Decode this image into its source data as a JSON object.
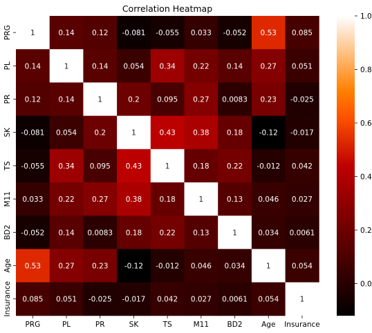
{
  "chart_data": {
    "type": "heatmap",
    "title": "Correlation Heatmap",
    "xlabel": "",
    "ylabel": "",
    "x_labels": [
      "PRG",
      "PL",
      "PR",
      "SK",
      "TS",
      "M11",
      "BD2",
      "Age",
      "Insurance"
    ],
    "y_labels": [
      "PRG",
      "PL",
      "PR",
      "SK",
      "TS",
      "M11",
      "BD2",
      "Age",
      "Insurance"
    ],
    "values": [
      [
        1,
        0.14,
        0.12,
        -0.081,
        -0.055,
        0.033,
        -0.052,
        0.53,
        0.085
      ],
      [
        0.14,
        1,
        0.14,
        0.054,
        0.34,
        0.22,
        0.14,
        0.27,
        0.051
      ],
      [
        0.12,
        0.14,
        1,
        0.2,
        0.095,
        0.27,
        0.0083,
        0.23,
        -0.025
      ],
      [
        -0.081,
        0.054,
        0.2,
        1,
        0.43,
        0.38,
        0.18,
        -0.12,
        -0.017
      ],
      [
        -0.055,
        0.34,
        0.095,
        0.43,
        1,
        0.18,
        0.22,
        -0.012,
        0.042
      ],
      [
        0.033,
        0.22,
        0.27,
        0.38,
        0.18,
        1,
        0.13,
        0.046,
        0.027
      ],
      [
        -0.052,
        0.14,
        0.0083,
        0.18,
        0.22,
        0.13,
        1,
        0.034,
        0.0061
      ],
      [
        0.53,
        0.27,
        0.23,
        -0.12,
        -0.012,
        0.046,
        0.034,
        1,
        0.054
      ],
      [
        0.085,
        0.051,
        -0.025,
        -0.017,
        0.042,
        0.027,
        0.0061,
        0.054,
        1
      ]
    ],
    "colorbar": {
      "colormap": "gist_heat",
      "vmin": -0.12,
      "vmax": 1.0,
      "ticks": [
        0.0,
        0.2,
        0.4,
        0.6,
        0.8,
        1.0
      ],
      "tick_labels": [
        "0.0",
        "0.2",
        "0.4",
        "0.6",
        "0.8",
        "1.0"
      ]
    },
    "annotations": true
  }
}
